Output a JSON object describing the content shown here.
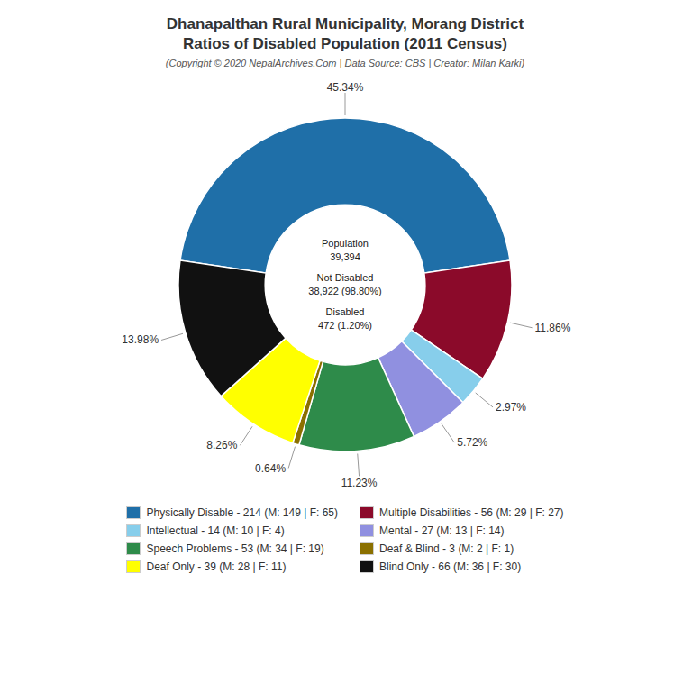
{
  "chart_data": {
    "type": "pie",
    "title": "Dhanapalthan Rural Municipality, Morang District\nRatios of Disabled Population (2011 Census)",
    "subtitle": "(Copyright © 2020 NepalArchives.Com | Data Source: CBS | Creator: Milan Karki)",
    "categories": [
      "Physically Disable - 214 (M: 149 | F: 65)",
      "Multiple Disabilities - 56 (M: 29 | F: 27)",
      "Intellectual - 14 (M: 10 | F: 4)",
      "Mental - 27 (M: 13 | F: 14)",
      "Speech Problems - 53 (M: 34 | F: 19)",
      "Deaf & Blind - 3 (M: 2 | F: 1)",
      "Deaf Only - 39 (M: 28 | F: 11)",
      "Blind Only - 66 (M: 36 | F: 30)"
    ],
    "values": [
      45.34,
      11.86,
      2.97,
      5.72,
      11.23,
      0.64,
      8.26,
      13.98
    ],
    "value_labels": [
      "45.34%",
      "11.86%",
      "2.97%",
      "5.72%",
      "11.23%",
      "0.64%",
      "8.26%",
      "13.98%"
    ],
    "colors": [
      "#1f6fa8",
      "#8b0a2a",
      "#87ceeb",
      "#9090e0",
      "#2e8b4a",
      "#8b7000",
      "#ffff00",
      "#111111"
    ],
    "annotations": [
      "Population",
      "39,394",
      "Not Disabled",
      "38,922 (98.80%)",
      "Disabled",
      "472 (1.20%)"
    ],
    "legend": "bottom"
  }
}
